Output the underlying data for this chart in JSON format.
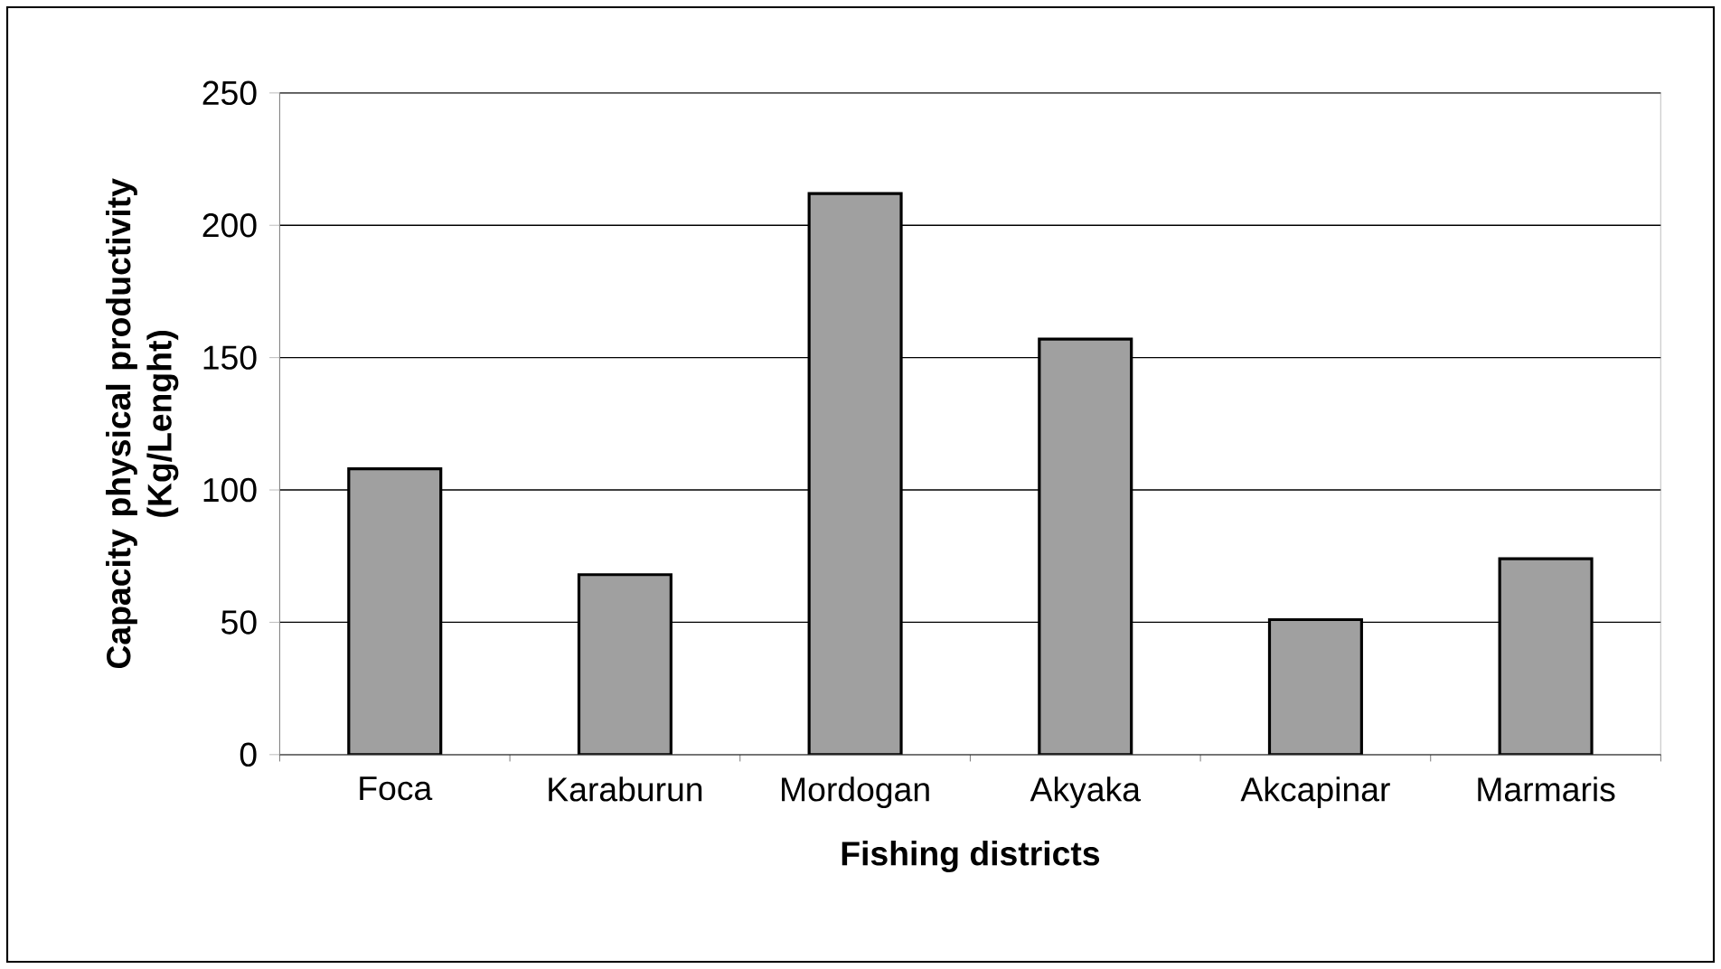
{
  "chart_data": {
    "type": "bar",
    "xlabel": "Fishing districts",
    "ylabel": "Capacity physical productivity\n(Kg/Lenght)",
    "categories": [
      "Foca",
      "Karaburun",
      "Mordogan",
      "Akyaka",
      "Akcapinar",
      "Marmaris"
    ],
    "values": [
      108,
      68,
      212,
      157,
      51,
      74
    ],
    "color": "#a0a0a0",
    "ylim": [
      0,
      250
    ],
    "yticks": [
      0,
      50,
      100,
      150,
      200,
      250
    ],
    "grid": "y"
  }
}
